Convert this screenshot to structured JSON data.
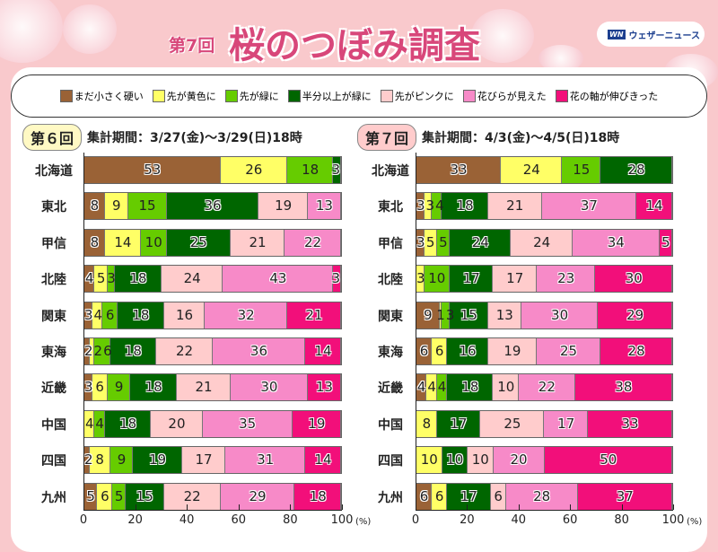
{
  "header": {
    "round": "第7回",
    "title": "桜のつぼみ調査",
    "logo_mark": "WN",
    "logo_text": "ウェザーニュース"
  },
  "legend": [
    {
      "label": "まだ小さく硬い",
      "color": "#9a6236"
    },
    {
      "label": "先が黄色に",
      "color": "#ffff66"
    },
    {
      "label": "先が緑に",
      "color": "#66cc00"
    },
    {
      "label": "半分以上が緑に",
      "color": "#006600"
    },
    {
      "label": "先がピンクに",
      "color": "#ffcccc"
    },
    {
      "label": "花びらが見えた",
      "color": "#f78ac8"
    },
    {
      "label": "花の軸が伸びきった",
      "color": "#f20f7a"
    }
  ],
  "chart_data": [
    {
      "type": "bar",
      "stacked": true,
      "orientation": "horizontal",
      "badge": "第６回",
      "period": "集計期間：3/27(金)～3/29(日)18時",
      "badge_color": "#fff9c4",
      "categories": [
        "北海道",
        "東北",
        "甲信",
        "北陸",
        "関東",
        "東海",
        "近畿",
        "中国",
        "四国",
        "九州"
      ],
      "xlim": [
        0,
        100
      ],
      "xticks": [
        "0",
        "20",
        "40",
        "60",
        "80",
        "100"
      ],
      "xunit": "(%)",
      "series": [
        {
          "name": "まだ小さく硬い",
          "values": [
            53,
            8,
            8,
            4,
            3,
            2,
            3,
            0,
            2,
            5
          ]
        },
        {
          "name": "先が黄色に",
          "values": [
            26,
            9,
            14,
            5,
            4,
            2,
            6,
            4,
            8,
            6
          ]
        },
        {
          "name": "先が緑に",
          "values": [
            18,
            15,
            10,
            3,
            6,
            6,
            9,
            4,
            9,
            5
          ]
        },
        {
          "name": "半分以上が緑に",
          "values": [
            3,
            36,
            25,
            18,
            18,
            18,
            18,
            18,
            19,
            15
          ]
        },
        {
          "name": "先がピンクに",
          "values": [
            0,
            19,
            21,
            24,
            16,
            22,
            21,
            20,
            17,
            22
          ]
        },
        {
          "name": "花びらが見えた",
          "values": [
            0,
            13,
            22,
            43,
            32,
            36,
            30,
            35,
            31,
            29
          ]
        },
        {
          "name": "花の軸が伸びきった",
          "values": [
            0,
            0,
            0,
            3,
            21,
            14,
            13,
            19,
            14,
            18
          ]
        }
      ]
    },
    {
      "type": "bar",
      "stacked": true,
      "orientation": "horizontal",
      "badge": "第７回",
      "period": "集計期間：4/3(金)～4/5(日)18時",
      "badge_color": "#ffcccc",
      "categories": [
        "北海道",
        "東北",
        "甲信",
        "北陸",
        "関東",
        "東海",
        "近畿",
        "中国",
        "四国",
        "九州"
      ],
      "xlim": [
        0,
        100
      ],
      "xticks": [
        "0",
        "20",
        "40",
        "60",
        "80",
        "100"
      ],
      "xunit": "(%)",
      "series": [
        {
          "name": "まだ小さく硬い",
          "values": [
            33,
            3,
            3,
            0,
            9,
            6,
            4,
            0,
            0,
            6
          ]
        },
        {
          "name": "先が黄色に",
          "values": [
            24,
            3,
            5,
            3,
            1,
            6,
            4,
            8,
            10,
            6
          ]
        },
        {
          "name": "先が緑に",
          "values": [
            15,
            4,
            5,
            10,
            3,
            0,
            4,
            0,
            0,
            0
          ]
        },
        {
          "name": "半分以上が緑に",
          "values": [
            28,
            18,
            24,
            17,
            15,
            16,
            18,
            17,
            10,
            17
          ]
        },
        {
          "name": "先がピンクに",
          "values": [
            0,
            21,
            24,
            17,
            13,
            19,
            10,
            25,
            10,
            6
          ]
        },
        {
          "name": "花びらが見えた",
          "values": [
            0,
            37,
            34,
            23,
            30,
            25,
            22,
            17,
            20,
            28
          ]
        },
        {
          "name": "花の軸が伸びきった",
          "values": [
            0,
            14,
            5,
            30,
            29,
            28,
            38,
            33,
            50,
            37
          ]
        }
      ]
    }
  ]
}
